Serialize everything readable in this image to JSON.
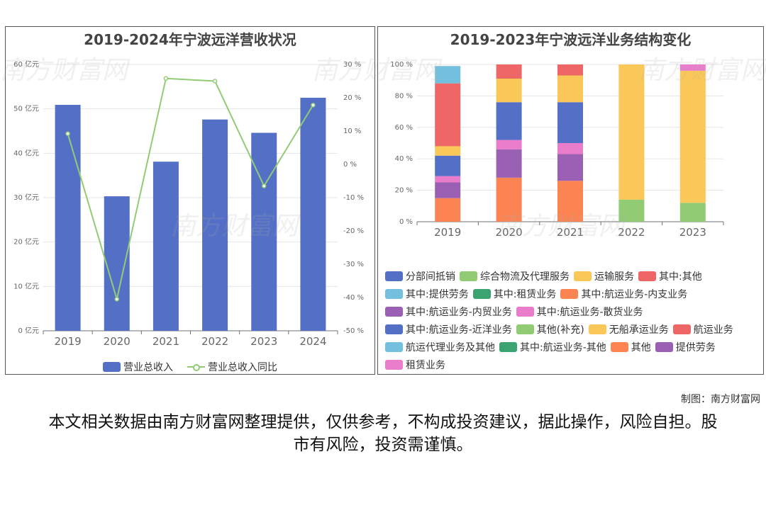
{
  "left_chart": {
    "title": "2019-2024年宁波远洋营收状况",
    "chart_data": {
      "type": "bar",
      "categories": [
        "2019",
        "2020",
        "2021",
        "2022",
        "2023",
        "2024"
      ],
      "series": [
        {
          "name": "营业总收入",
          "type": "bar",
          "values": [
            50.9,
            30.3,
            38.1,
            47.6,
            44.6,
            52.5
          ],
          "color": "#5470c6"
        },
        {
          "name": "营业总收入同比",
          "type": "line",
          "values": [
            9.2,
            -40.5,
            25.8,
            25.0,
            -6.5,
            17.8
          ],
          "color": "#91cc75"
        }
      ],
      "y_left": {
        "ylim": [
          0,
          60
        ],
        "ticks": [
          "0 亿元",
          "10 亿元",
          "20 亿元",
          "30 亿元",
          "40 亿元",
          "50 亿元",
          "60 亿元"
        ]
      },
      "y_right": {
        "ylim": [
          -50,
          30
        ],
        "ticks": [
          "-50 %",
          "-40 %",
          "-30 %",
          "-20 %",
          "-10 %",
          "0 %",
          "10 %",
          "20 %",
          "30 %"
        ]
      },
      "grid": true
    },
    "legend": [
      {
        "label": "营业总收入",
        "color": "#5470c6",
        "kind": "bar"
      },
      {
        "label": "营业总收入同比",
        "color": "#91cc75",
        "kind": "line"
      }
    ]
  },
  "right_chart": {
    "title": "2019-2023年宁波远洋业务结构变化",
    "chart_data": {
      "type": "bar",
      "stacked": true,
      "categories": [
        "2019",
        "2020",
        "2021",
        "2022",
        "2023"
      ],
      "ylim": [
        0,
        100
      ],
      "ticks": [
        "0 %",
        "20 %",
        "40 %",
        "60 %",
        "80 %",
        "100 %"
      ],
      "grid": true,
      "series": [
        {
          "name": "其中:航运业务-内支业务",
          "color": "#fc8452",
          "values": [
            15,
            28,
            26,
            0,
            0
          ]
        },
        {
          "name": "其中:航运业务-内贸业务",
          "color": "#9a60b4",
          "values": [
            10,
            18,
            17,
            0,
            0
          ]
        },
        {
          "name": "其中:航运业务-散货业务",
          "color": "#ea7ccc",
          "values": [
            4,
            6,
            7,
            0,
            0
          ]
        },
        {
          "name": "其中:航运业务-近洋业务",
          "color": "#5470c6",
          "values": [
            13,
            24,
            26,
            0,
            0
          ]
        },
        {
          "name": "其他(补充)",
          "color": "#91cc75",
          "values": [
            0,
            0,
            0,
            14,
            12
          ]
        },
        {
          "name": "无船承运业务",
          "color": "#fac858",
          "values": [
            6,
            15,
            17,
            86,
            84
          ]
        },
        {
          "name": "其中:其他",
          "color": "#ee6666",
          "values": [
            40,
            9,
            7,
            0,
            0
          ]
        },
        {
          "name": "其中:提供劳务",
          "color": "#73c0de",
          "values": [
            11,
            0,
            0,
            0,
            0
          ]
        },
        {
          "name": "租赁业务",
          "color": "#ea7ccc",
          "values": [
            0,
            0,
            0,
            0,
            4
          ]
        }
      ]
    },
    "legend": [
      {
        "label": "分部间抵销",
        "color": "#5470c6"
      },
      {
        "label": "综合物流及代理服务",
        "color": "#91cc75"
      },
      {
        "label": "运输服务",
        "color": "#fac858"
      },
      {
        "label": "其中:其他",
        "color": "#ee6666"
      },
      {
        "label": "其中:提供劳务",
        "color": "#73c0de"
      },
      {
        "label": "其中:租赁业务",
        "color": "#3ba272"
      },
      {
        "label": "其中:航运业务-内支业务",
        "color": "#fc8452"
      },
      {
        "label": "其中:航运业务-内贸业务",
        "color": "#9a60b4"
      },
      {
        "label": "其中:航运业务-散货业务",
        "color": "#ea7ccc"
      },
      {
        "label": "其中:航运业务-近洋业务",
        "color": "#5470c6"
      },
      {
        "label": "其他(补充)",
        "color": "#91cc75"
      },
      {
        "label": "无船承运业务",
        "color": "#fac858"
      },
      {
        "label": "航运业务",
        "color": "#ee6666"
      },
      {
        "label": "航运代理业务及其他",
        "color": "#73c0de"
      },
      {
        "label": "其中:航运业务-其他",
        "color": "#3ba272"
      },
      {
        "label": "其他",
        "color": "#fc8452"
      },
      {
        "label": "提供劳务",
        "color": "#9a60b4"
      },
      {
        "label": "租赁业务",
        "color": "#ea7ccc"
      }
    ]
  },
  "watermark_text": "南方财富网",
  "credit": "制图：南方财富网",
  "disclaimer": "本文相关数据由南方财富网整理提供，仅供参考，不构成投资建议，据此操作，风险自担。股市有风险，投资需谨慎。"
}
